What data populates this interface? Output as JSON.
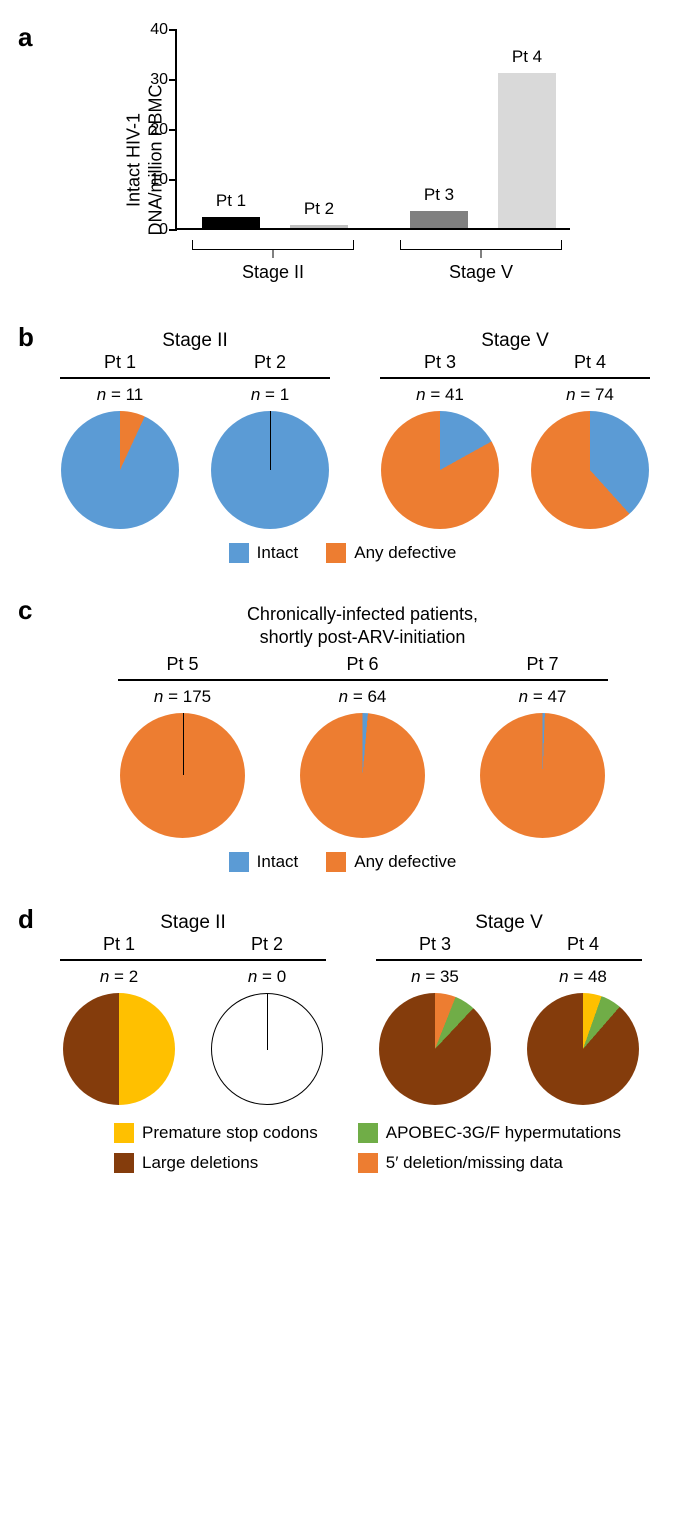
{
  "colors": {
    "intact": "#5b9bd5",
    "defective": "#ed7d31",
    "premature": "#ffc000",
    "large_del": "#843c0c",
    "apobec": "#70ad47",
    "five_prime": "#ed7d31",
    "black": "#000000",
    "gray_light": "#bfbfbf",
    "gray_mid": "#808080",
    "gray_vlight": "#d9d9d9",
    "white": "#ffffff"
  },
  "panel_a": {
    "label": "a",
    "y_axis_label": "Intact HIV-1\nDNA/million PBMC",
    "ylim": [
      0,
      40
    ],
    "ytick_step": 10,
    "bars": [
      {
        "label": "Pt 1",
        "value": 2.2,
        "color": "#000000"
      },
      {
        "label": "Pt 2",
        "value": 0.7,
        "color": "#bfbfbf"
      },
      {
        "label": "Pt 3",
        "value": 3.4,
        "color": "#808080"
      },
      {
        "label": "Pt 4",
        "value": 31,
        "color": "#d9d9d9"
      }
    ],
    "stages": [
      {
        "label": "Stage II",
        "bars": [
          0,
          1
        ]
      },
      {
        "label": "Stage V",
        "bars": [
          2,
          3
        ]
      }
    ]
  },
  "panel_b": {
    "label": "b",
    "groups": [
      {
        "stage": "Stage II",
        "pies": [
          {
            "pt": "Pt 1",
            "n": 11,
            "slices": [
              {
                "color": "#ed7d31",
                "pct": 18
              },
              {
                "color": "#5b9bd5",
                "pct": 82
              }
            ],
            "start": -40
          },
          {
            "pt": "Pt 2",
            "n": 1,
            "slices": [
              {
                "color": "#5b9bd5",
                "pct": 100
              }
            ],
            "start": 0,
            "tick": true
          }
        ]
      },
      {
        "stage": "Stage V",
        "pies": [
          {
            "pt": "Pt 3",
            "n": 41,
            "slices": [
              {
                "color": "#5b9bd5",
                "pct": 15
              },
              {
                "color": "#ed7d31",
                "pct": 85
              }
            ],
            "start": 7
          },
          {
            "pt": "Pt 4",
            "n": 74,
            "slices": [
              {
                "color": "#5b9bd5",
                "pct": 35
              },
              {
                "color": "#ed7d31",
                "pct": 65
              }
            ],
            "start": 12
          }
        ]
      }
    ],
    "legend": [
      {
        "label": "Intact",
        "color": "#5b9bd5"
      },
      {
        "label": "Any defective",
        "color": "#ed7d31"
      }
    ]
  },
  "panel_c": {
    "label": "c",
    "title": "Chronically-infected patients,\nshortly post-ARV-initiation",
    "pies": [
      {
        "pt": "Pt 5",
        "n": 175,
        "slices": [
          {
            "color": "#ed7d31",
            "pct": 100
          }
        ],
        "start": 0,
        "tick": true
      },
      {
        "pt": "Pt 6",
        "n": 64,
        "slices": [
          {
            "color": "#5b9bd5",
            "pct": 5
          },
          {
            "color": "#ed7d31",
            "pct": 95
          }
        ],
        "start": -13
      },
      {
        "pt": "Pt 7",
        "n": 47,
        "slices": [
          {
            "color": "#5b9bd5",
            "pct": 2
          },
          {
            "color": "#ed7d31",
            "pct": 98
          }
        ],
        "start": -5
      }
    ],
    "legend": [
      {
        "label": "Intact",
        "color": "#5b9bd5"
      },
      {
        "label": "Any defective",
        "color": "#ed7d31"
      }
    ]
  },
  "panel_d": {
    "label": "d",
    "groups": [
      {
        "stage": "Stage II",
        "pies": [
          {
            "pt": "Pt 1",
            "n": 2,
            "slices": [
              {
                "color": "#ffc000",
                "pct": 50
              },
              {
                "color": "#843c0c",
                "pct": 50
              }
            ],
            "start": 0
          },
          {
            "pt": "Pt 2",
            "n": 0,
            "slices": [
              {
                "color": "#ffffff",
                "pct": 100
              }
            ],
            "start": 0,
            "border": true,
            "tick": true
          }
        ]
      },
      {
        "stage": "Stage V",
        "pies": [
          {
            "pt": "Pt 3",
            "n": 35,
            "slices": [
              {
                "color": "#ed7d31",
                "pct": 11
              },
              {
                "color": "#70ad47",
                "pct": 6
              },
              {
                "color": "#843c0c",
                "pct": 83
              }
            ],
            "start": -18
          },
          {
            "pt": "Pt 4",
            "n": 48,
            "slices": [
              {
                "color": "#ffc000",
                "pct": 4
              },
              {
                "color": "#70ad47",
                "pct": 6
              },
              {
                "color": "#843c0c",
                "pct": 90
              }
            ],
            "start": 5
          }
        ]
      }
    ],
    "legend": [
      {
        "label": "Premature stop codons",
        "color": "#ffc000"
      },
      {
        "label": "APOBEC-3G/F hypermutations",
        "color": "#70ad47"
      },
      {
        "label": "Large deletions",
        "color": "#843c0c"
      },
      {
        "label": "5′ deletion/missing data",
        "color": "#ed7d31"
      }
    ]
  }
}
